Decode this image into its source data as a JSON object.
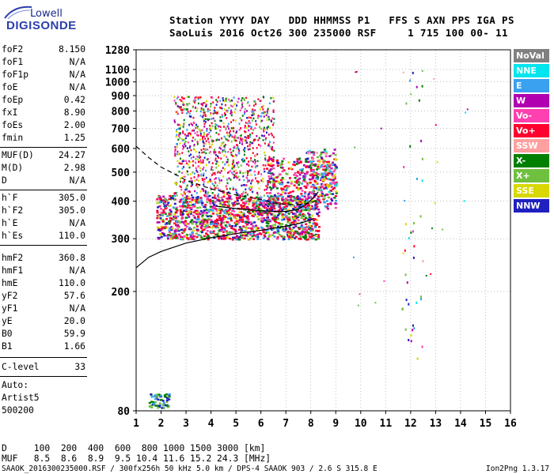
{
  "logo": {
    "line1": "Lowell",
    "line2": "DIGISONDE"
  },
  "header": {
    "row1": "Station YYYY DAY   DDD HHMMSS P1   FFS S AXN PPS IGA PS",
    "row2": "SaoLuis 2016 Oct26 300 235000 RSF     1 715 100 00- 11"
  },
  "params_a": [
    {
      "name": "foF2",
      "value": "8.150"
    },
    {
      "name": "foF1",
      "value": "N/A"
    },
    {
      "name": "foF1p",
      "value": "N/A"
    },
    {
      "name": "foE",
      "value": "N/A"
    },
    {
      "name": "foEp",
      "value": "0.42"
    },
    {
      "name": "fxI",
      "value": "8.90"
    },
    {
      "name": "foEs",
      "value": "2.00"
    },
    {
      "name": "fmin",
      "value": "1.25"
    }
  ],
  "params_b": [
    {
      "name": "MUF(D)",
      "value": "24.27"
    },
    {
      "name": "M(D)",
      "value": "2.98"
    },
    {
      "name": "D",
      "value": "N/A"
    }
  ],
  "params_c": [
    {
      "name": "h`F",
      "value": "305.0"
    },
    {
      "name": "h`F2",
      "value": "305.0"
    },
    {
      "name": "h`E",
      "value": "N/A"
    },
    {
      "name": "h`Es",
      "value": "110.0"
    }
  ],
  "params_d": [
    {
      "name": "hmF2",
      "value": "360.8"
    },
    {
      "name": "hmF1",
      "value": "N/A"
    },
    {
      "name": "hmE",
      "value": "110.0"
    },
    {
      "name": "yF2",
      "value": "57.6"
    },
    {
      "name": "yF1",
      "value": "N/A"
    },
    {
      "name": "yE",
      "value": "20.0"
    },
    {
      "name": "B0",
      "value": "59.9"
    },
    {
      "name": "B1",
      "value": "1.66"
    }
  ],
  "clevel": {
    "name": "C-level",
    "value": "33"
  },
  "auto": [
    "Auto:",
    "Artist5",
    "500200"
  ],
  "footer": {
    "drow": "D     100  200  400  600  800 1000 1500 3000 [km]",
    "mufrow": "MUF   8.5  8.6  8.9  9.5 10.4 11.6 15.2 24.3 [MHz]",
    "fileline": "SAAOK_2016300235000.RSF / 300fx256h 50 kHz 5.0 km / DPS-4 SAAOK 903 / 2.6 S 315.8 E",
    "version": "Ion2Png 1.3.17"
  },
  "legend": [
    {
      "label": "NoVal",
      "color": "#808080"
    },
    {
      "label": "NNE",
      "color": "#00e5ee"
    },
    {
      "label": "E",
      "color": "#3aa0f0"
    },
    {
      "label": "W",
      "color": "#b000b0"
    },
    {
      "label": "Vo-",
      "color": "#ff40b0"
    },
    {
      "label": "Vo+",
      "color": "#ff0030"
    },
    {
      "label": "SSW",
      "color": "#ffa0a0"
    },
    {
      "label": "X-",
      "color": "#008000"
    },
    {
      "label": "X+",
      "color": "#70c040"
    },
    {
      "label": "SSE",
      "color": "#d8d800"
    },
    {
      "label": "NNW",
      "color": "#2020c0"
    }
  ],
  "chart_data": {
    "type": "scatter",
    "xlabel": "",
    "ylabel": "",
    "xlim": [
      1,
      16
    ],
    "ylim": [
      80,
      1280
    ],
    "x_scale": "linear",
    "y_scale": "log",
    "x_ticks": [
      "1",
      "2",
      "3",
      "4",
      "5",
      "6",
      "7",
      "8",
      "9",
      "10",
      "11",
      "12",
      "13",
      "14",
      "15",
      "16"
    ],
    "y_ticks": [
      "80",
      "200",
      "300",
      "400",
      "500",
      "600",
      "700",
      "800",
      "900",
      "1000",
      "1100",
      "1280"
    ],
    "grid": true,
    "legend_position": "right",
    "series": [
      {
        "name": "",
        "type": "line",
        "style": "solid",
        "points": [
          [
            1,
            240
          ],
          [
            1.5,
            260
          ],
          [
            2,
            272
          ],
          [
            3,
            290
          ],
          [
            4,
            302
          ],
          [
            5,
            312
          ],
          [
            6,
            320
          ],
          [
            7,
            330
          ],
          [
            7.5,
            337
          ],
          [
            8,
            346
          ],
          [
            8.1,
            350
          ]
        ]
      },
      {
        "name": "",
        "type": "line",
        "style": "dashed",
        "points": [
          [
            1,
            610
          ],
          [
            1.5,
            560
          ],
          [
            2,
            520
          ],
          [
            2.5,
            495
          ],
          [
            3,
            470
          ],
          [
            3.5,
            455
          ],
          [
            4,
            440
          ],
          [
            5,
            420
          ],
          [
            6,
            405
          ],
          [
            6.5,
            395
          ],
          [
            7,
            390
          ],
          [
            7.5,
            390
          ],
          [
            8,
            395
          ],
          [
            8.3,
            405
          ]
        ]
      },
      {
        "name": "",
        "type": "line",
        "style": "solid",
        "points": [
          [
            4.2,
            385
          ],
          [
            5,
            378
          ],
          [
            6,
            372
          ],
          [
            6.5,
            370
          ],
          [
            7,
            370
          ],
          [
            7.5,
            376
          ],
          [
            7.8,
            390
          ],
          [
            8.1,
            410
          ],
          [
            8.3,
            430
          ]
        ]
      }
    ]
  }
}
